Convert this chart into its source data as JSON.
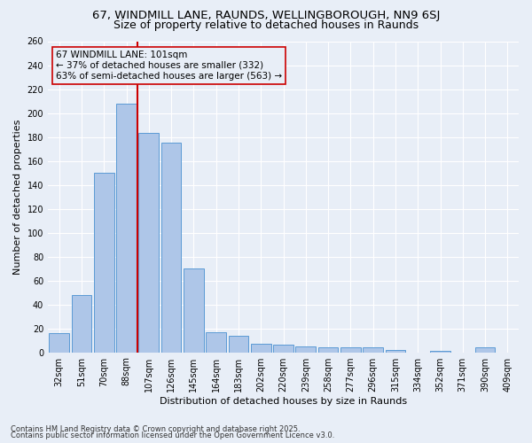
{
  "title1": "67, WINDMILL LANE, RAUNDS, WELLINGBOROUGH, NN9 6SJ",
  "title2": "Size of property relative to detached houses in Raunds",
  "xlabel": "Distribution of detached houses by size in Raunds",
  "ylabel": "Number of detached properties",
  "categories": [
    "32sqm",
    "51sqm",
    "70sqm",
    "88sqm",
    "107sqm",
    "126sqm",
    "145sqm",
    "164sqm",
    "183sqm",
    "202sqm",
    "220sqm",
    "239sqm",
    "258sqm",
    "277sqm",
    "296sqm",
    "315sqm",
    "334sqm",
    "352sqm",
    "371sqm",
    "390sqm",
    "409sqm"
  ],
  "values": [
    16,
    48,
    150,
    208,
    183,
    175,
    70,
    17,
    14,
    7,
    6,
    5,
    4,
    4,
    4,
    2,
    0,
    1,
    0,
    4,
    0
  ],
  "bar_color": "#aec6e8",
  "bar_edge_color": "#5b9bd5",
  "background_color": "#e8eef7",
  "grid_color": "#ffffff",
  "vline_x": 3.5,
  "vline_color": "#cc0000",
  "annotation_line1": "67 WINDMILL LANE: 101sqm",
  "annotation_line2": "← 37% of detached houses are smaller (332)",
  "annotation_line3": "63% of semi-detached houses are larger (563) →",
  "annotation_box_color": "#cc0000",
  "ylim": [
    0,
    260
  ],
  "yticks": [
    0,
    20,
    40,
    60,
    80,
    100,
    120,
    140,
    160,
    180,
    200,
    220,
    240,
    260
  ],
  "footnote1": "Contains HM Land Registry data © Crown copyright and database right 2025.",
  "footnote2": "Contains public sector information licensed under the Open Government Licence v3.0.",
  "title1_fontsize": 9.5,
  "title2_fontsize": 9,
  "axis_fontsize": 8,
  "tick_fontsize": 7,
  "annot_fontsize": 7.5
}
